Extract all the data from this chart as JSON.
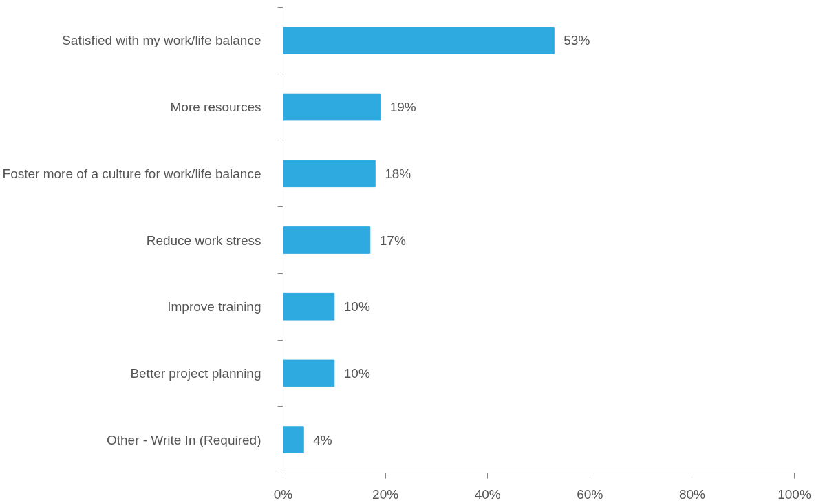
{
  "chart_data": {
    "type": "bar",
    "orientation": "horizontal",
    "categories": [
      "Satisfied with my work/life balance",
      "More resources",
      "Foster more of a culture for work/life balance",
      "Reduce work stress",
      "Improve training",
      "Better project planning",
      "Other - Write In (Required)"
    ],
    "values": [
      53,
      19,
      18,
      17,
      10,
      10,
      4
    ],
    "value_labels": [
      "53%",
      "19%",
      "18%",
      "17%",
      "10%",
      "10%",
      "4%"
    ],
    "color": "#2eaae1",
    "xlim": [
      0,
      100
    ],
    "xticks": [
      {
        "value": 0,
        "label": "0%"
      },
      {
        "value": 20,
        "label": "20%"
      },
      {
        "value": 40,
        "label": "40%"
      },
      {
        "value": 60,
        "label": "60%"
      },
      {
        "value": 80,
        "label": "80%"
      },
      {
        "value": 100,
        "label": "100%"
      }
    ],
    "grid": false
  }
}
